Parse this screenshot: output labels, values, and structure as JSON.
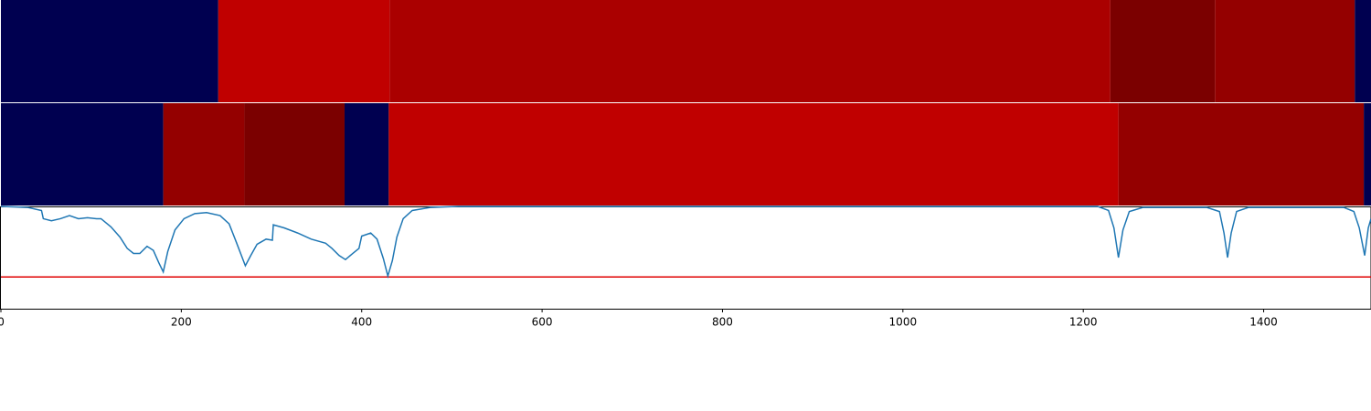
{
  "chart_data": [
    {
      "type": "heatmap",
      "xlim": [
        0,
        1519
      ],
      "bins": [
        0,
        241,
        431,
        1230,
        1346,
        1501,
        1519
      ],
      "colors": [
        "#000050",
        "#c00000",
        "#aa0000",
        "#7b0000",
        "#940000",
        "#000050"
      ]
    },
    {
      "type": "heatmap",
      "xlim": [
        0,
        1519
      ],
      "bins": [
        0,
        180,
        270,
        381,
        430,
        1239,
        1511,
        1519
      ],
      "colors": [
        "#000050",
        "#940000",
        "#7b0000",
        "#000050",
        "#c00000",
        "#940000",
        "#000050"
      ]
    },
    {
      "type": "line",
      "xlim": [
        0,
        1519
      ],
      "ylim": [
        0,
        1
      ],
      "color": "#1f77b4",
      "xticks": [
        0,
        200,
        400,
        600,
        800,
        1000,
        1200,
        1400
      ],
      "hline": {
        "value": 0.31,
        "color": "#e00000"
      },
      "x": [
        0,
        30,
        45,
        47,
        56,
        66,
        76,
        86,
        96,
        106,
        111,
        122,
        132,
        140,
        147,
        154,
        162,
        169,
        175,
        180,
        185,
        193,
        203,
        215,
        228,
        243,
        253,
        261,
        271,
        277,
        284,
        294,
        301,
        302,
        314,
        329,
        344,
        360,
        367,
        375,
        382,
        390,
        397,
        400,
        410,
        417,
        424,
        429,
        434,
        439,
        446,
        456,
        476,
        507,
        1216,
        1228,
        1234,
        1239,
        1244,
        1251,
        1266,
        1337,
        1351,
        1356,
        1360,
        1364,
        1370,
        1383,
        1489,
        1500,
        1506,
        1512,
        1516,
        1519
      ],
      "values": [
        1.0,
        0.99,
        0.96,
        0.88,
        0.86,
        0.88,
        0.91,
        0.88,
        0.89,
        0.88,
        0.88,
        0.8,
        0.7,
        0.59,
        0.54,
        0.54,
        0.61,
        0.57,
        0.45,
        0.36,
        0.56,
        0.77,
        0.88,
        0.93,
        0.94,
        0.91,
        0.83,
        0.65,
        0.42,
        0.52,
        0.63,
        0.68,
        0.67,
        0.82,
        0.79,
        0.74,
        0.68,
        0.64,
        0.59,
        0.52,
        0.48,
        0.54,
        0.59,
        0.71,
        0.74,
        0.68,
        0.49,
        0.32,
        0.47,
        0.7,
        0.88,
        0.96,
        0.99,
        1.0,
        1.0,
        0.96,
        0.79,
        0.5,
        0.77,
        0.95,
        0.99,
        0.99,
        0.95,
        0.74,
        0.5,
        0.74,
        0.95,
        0.99,
        0.99,
        0.95,
        0.79,
        0.52,
        0.79,
        0.88
      ]
    }
  ]
}
